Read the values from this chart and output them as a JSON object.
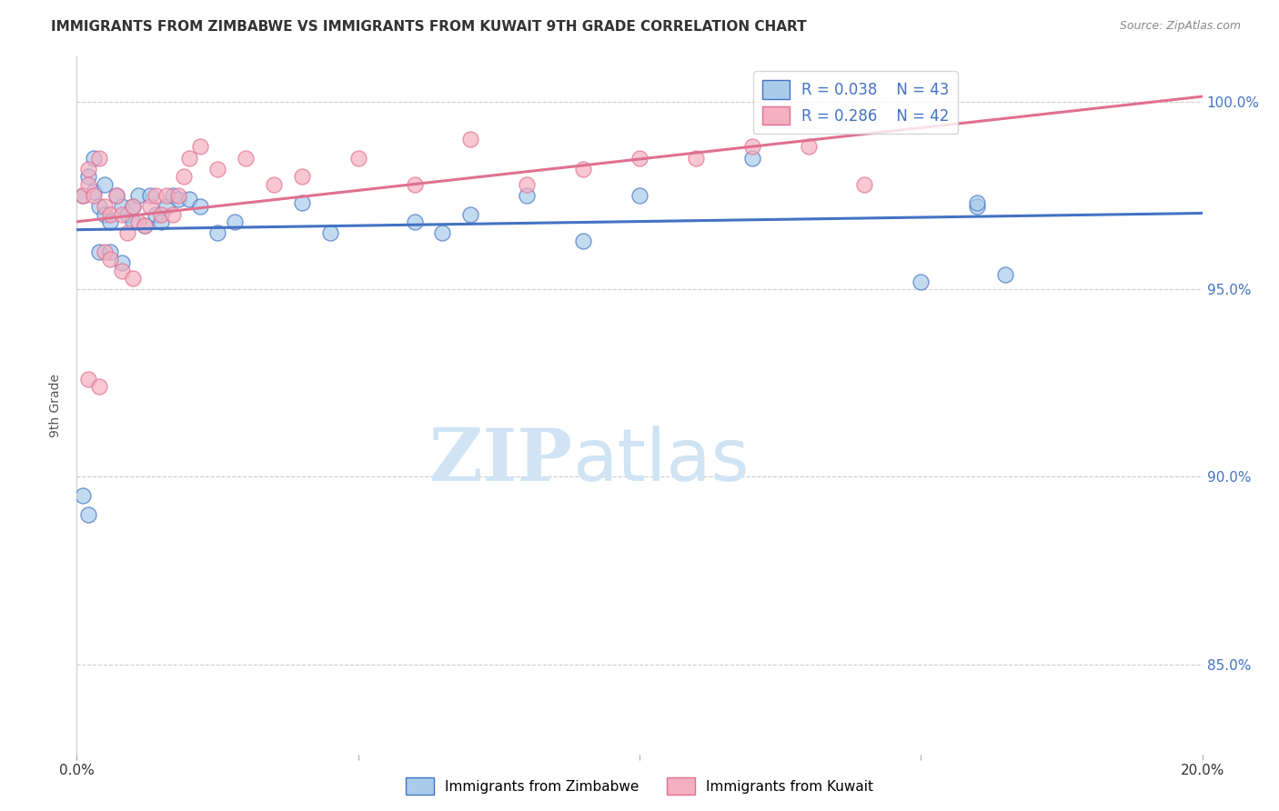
{
  "title": "IMMIGRANTS FROM ZIMBABWE VS IMMIGRANTS FROM KUWAIT 9TH GRADE CORRELATION CHART",
  "source": "Source: ZipAtlas.com",
  "ylabel": "9th Grade",
  "x_min": 0.0,
  "x_max": 0.2,
  "y_min": 0.826,
  "y_max": 1.012,
  "yticks": [
    0.85,
    0.9,
    0.95,
    1.0
  ],
  "ytick_labels": [
    "85.0%",
    "90.0%",
    "95.0%",
    "100.0%"
  ],
  "xticks": [
    0.0,
    0.05,
    0.1,
    0.15,
    0.2
  ],
  "xtick_labels": [
    "0.0%",
    "",
    "",
    "",
    "20.0%"
  ],
  "legend_r_zimbabwe": "R = 0.038",
  "legend_n_zimbabwe": "N = 43",
  "legend_r_kuwait": "R = 0.286",
  "legend_n_kuwait": "N = 42",
  "color_zimbabwe": "#A8CCEA",
  "color_kuwait": "#F4B0C0",
  "color_line_zimbabwe": "#4472C4",
  "color_line_kuwait": "#E07090",
  "color_title": "#333333",
  "color_source": "#888888",
  "color_yticks_right": "#4472C4",
  "color_grid": "#CCCCCC",
  "watermark_zip": "ZIP",
  "watermark_atlas": "atlas",
  "watermark_color": "#D0E4F4",
  "background": "#FFFFFF",
  "zimbabwe_x": [
    0.001,
    0.002,
    0.003,
    0.003,
    0.004,
    0.005,
    0.005,
    0.006,
    0.007,
    0.008,
    0.009,
    0.01,
    0.01,
    0.011,
    0.012,
    0.013,
    0.014,
    0.015,
    0.016,
    0.017,
    0.018,
    0.02,
    0.022,
    0.025,
    0.028,
    0.04,
    0.045,
    0.06,
    0.065,
    0.07,
    0.08,
    0.09,
    0.1,
    0.12,
    0.15,
    0.16,
    0.001,
    0.002,
    0.004,
    0.006,
    0.008,
    0.16,
    0.165
  ],
  "zimbabwe_y": [
    0.975,
    0.98,
    0.976,
    0.985,
    0.972,
    0.97,
    0.978,
    0.968,
    0.975,
    0.972,
    0.97,
    0.968,
    0.972,
    0.975,
    0.967,
    0.975,
    0.97,
    0.968,
    0.972,
    0.975,
    0.974,
    0.974,
    0.972,
    0.965,
    0.968,
    0.973,
    0.965,
    0.968,
    0.965,
    0.97,
    0.975,
    0.963,
    0.975,
    0.985,
    0.952,
    0.972,
    0.895,
    0.89,
    0.96,
    0.96,
    0.957,
    0.973,
    0.954
  ],
  "kuwait_x": [
    0.001,
    0.002,
    0.002,
    0.003,
    0.004,
    0.005,
    0.006,
    0.007,
    0.008,
    0.009,
    0.01,
    0.011,
    0.012,
    0.013,
    0.014,
    0.015,
    0.016,
    0.017,
    0.018,
    0.019,
    0.02,
    0.022,
    0.025,
    0.03,
    0.035,
    0.04,
    0.05,
    0.06,
    0.07,
    0.08,
    0.09,
    0.1,
    0.11,
    0.12,
    0.13,
    0.14,
    0.002,
    0.004,
    0.005,
    0.006,
    0.008,
    0.01
  ],
  "kuwait_y": [
    0.975,
    0.978,
    0.982,
    0.975,
    0.985,
    0.972,
    0.97,
    0.975,
    0.97,
    0.965,
    0.972,
    0.968,
    0.967,
    0.972,
    0.975,
    0.97,
    0.975,
    0.97,
    0.975,
    0.98,
    0.985,
    0.988,
    0.982,
    0.985,
    0.978,
    0.98,
    0.985,
    0.978,
    0.99,
    0.978,
    0.982,
    0.985,
    0.985,
    0.988,
    0.988,
    0.978,
    0.926,
    0.924,
    0.96,
    0.958,
    0.955,
    0.953
  ]
}
